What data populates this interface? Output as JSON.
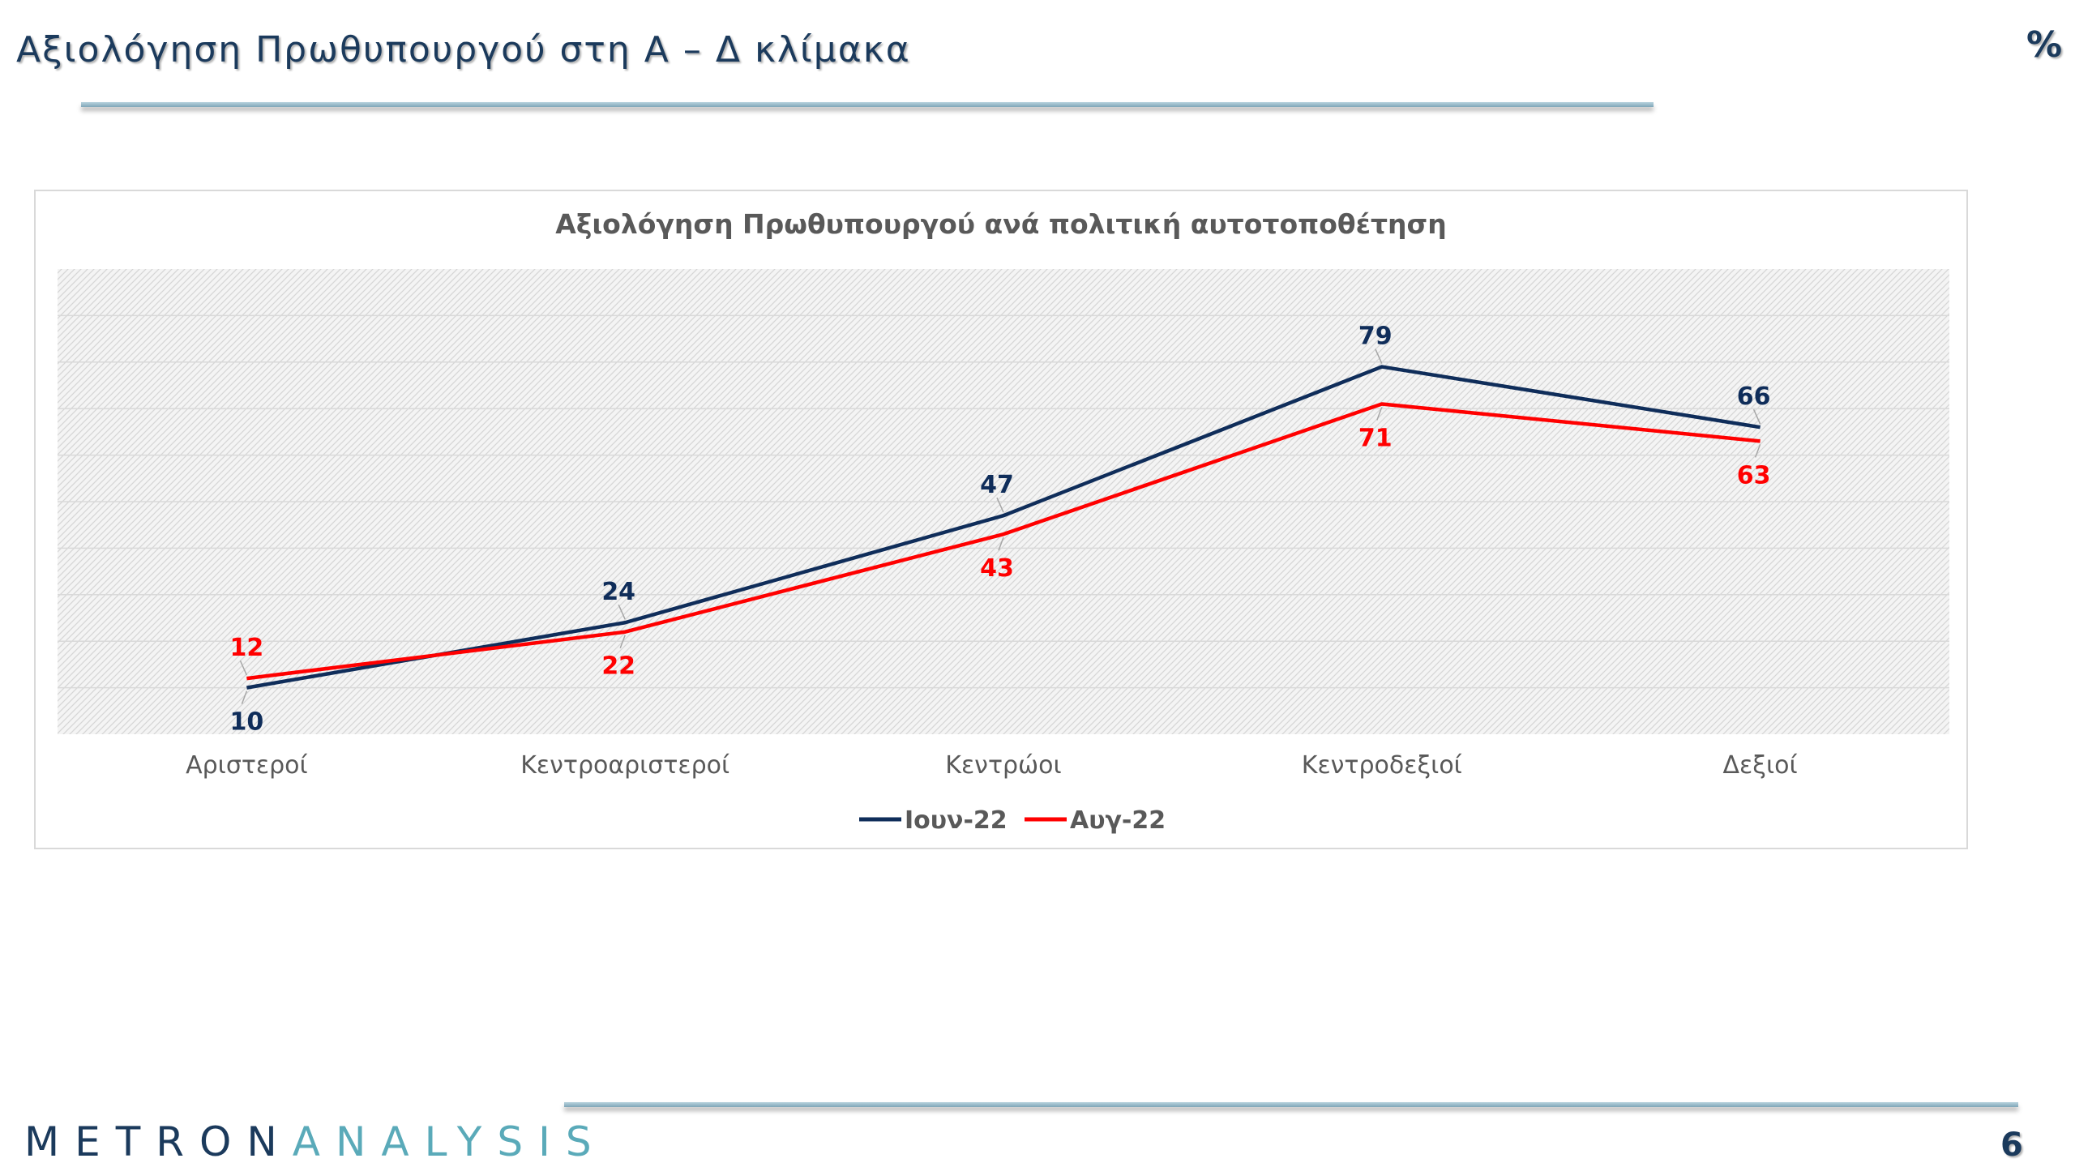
{
  "slide": {
    "title": "Αξιολόγηση Πρωθυπουργού στη Α – Δ κλίμακα",
    "unit_marker": "%",
    "page_number": "6"
  },
  "brand": {
    "logo_text_part1": "METRON",
    "logo_text_part2": "ANALYSIS",
    "colors": {
      "dark": "#1b3a5c",
      "accent": "#5aaab9"
    }
  },
  "chart_data": {
    "type": "line",
    "title": "Αξιολόγηση Πρωθυπουργού ανά πολιτική αυτοτοποθέτηση",
    "categories": [
      "Αριστεροί",
      "Κεντροαριστεροί",
      "Κεντρώοι",
      "Κεντροδεξιοί",
      "Δεξιοί"
    ],
    "series": [
      {
        "name": "Ιουν-22",
        "color": "#0f2d5a",
        "values": [
          10,
          24,
          47,
          79,
          66
        ]
      },
      {
        "name": "Αυγ-22",
        "color": "#ff0000",
        "values": [
          12,
          22,
          43,
          71,
          63
        ]
      }
    ],
    "ylim": [
      0,
      100
    ],
    "grid": true,
    "legend_position": "bottom",
    "data_labels": true,
    "xlabel": "",
    "ylabel": ""
  }
}
